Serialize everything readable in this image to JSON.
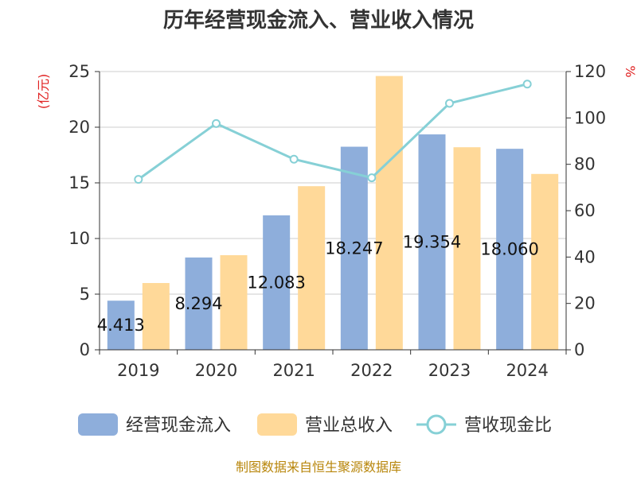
{
  "chart_data": {
    "type": "bar",
    "title": "历年经营现金流入、营业收入情况",
    "categories": [
      "2019",
      "2020",
      "2021",
      "2022",
      "2023",
      "2024"
    ],
    "left_unit": "(亿元)",
    "right_unit": "%",
    "ylim": [
      0,
      25
    ],
    "y_ticks": [
      0,
      5,
      10,
      15,
      20,
      25
    ],
    "y2lim": [
      0,
      120
    ],
    "y2_ticks": [
      0,
      20,
      40,
      60,
      80,
      100,
      120
    ],
    "grid": true,
    "legend_position": "bottom",
    "series": [
      {
        "name": "经营现金流入",
        "type": "bar",
        "axis": "left",
        "color": "#8eaedb",
        "values": [
          4.413,
          8.294,
          12.083,
          18.247,
          19.354,
          18.06
        ],
        "labels": [
          "4.413",
          "8.294",
          "12.083",
          "18.247",
          "19.354",
          "18.060"
        ]
      },
      {
        "name": "营业总收入",
        "type": "bar",
        "axis": "left",
        "color": "#ffd999",
        "values": [
          6.0,
          8.5,
          14.7,
          24.6,
          18.2,
          15.8
        ]
      },
      {
        "name": "营收现金比",
        "type": "line",
        "axis": "right",
        "color": "#86d0d6",
        "values": [
          73.5,
          97.6,
          82.2,
          74.2,
          106.3,
          114.6
        ]
      }
    ],
    "source": "制图数据来自恒生聚源数据库"
  }
}
